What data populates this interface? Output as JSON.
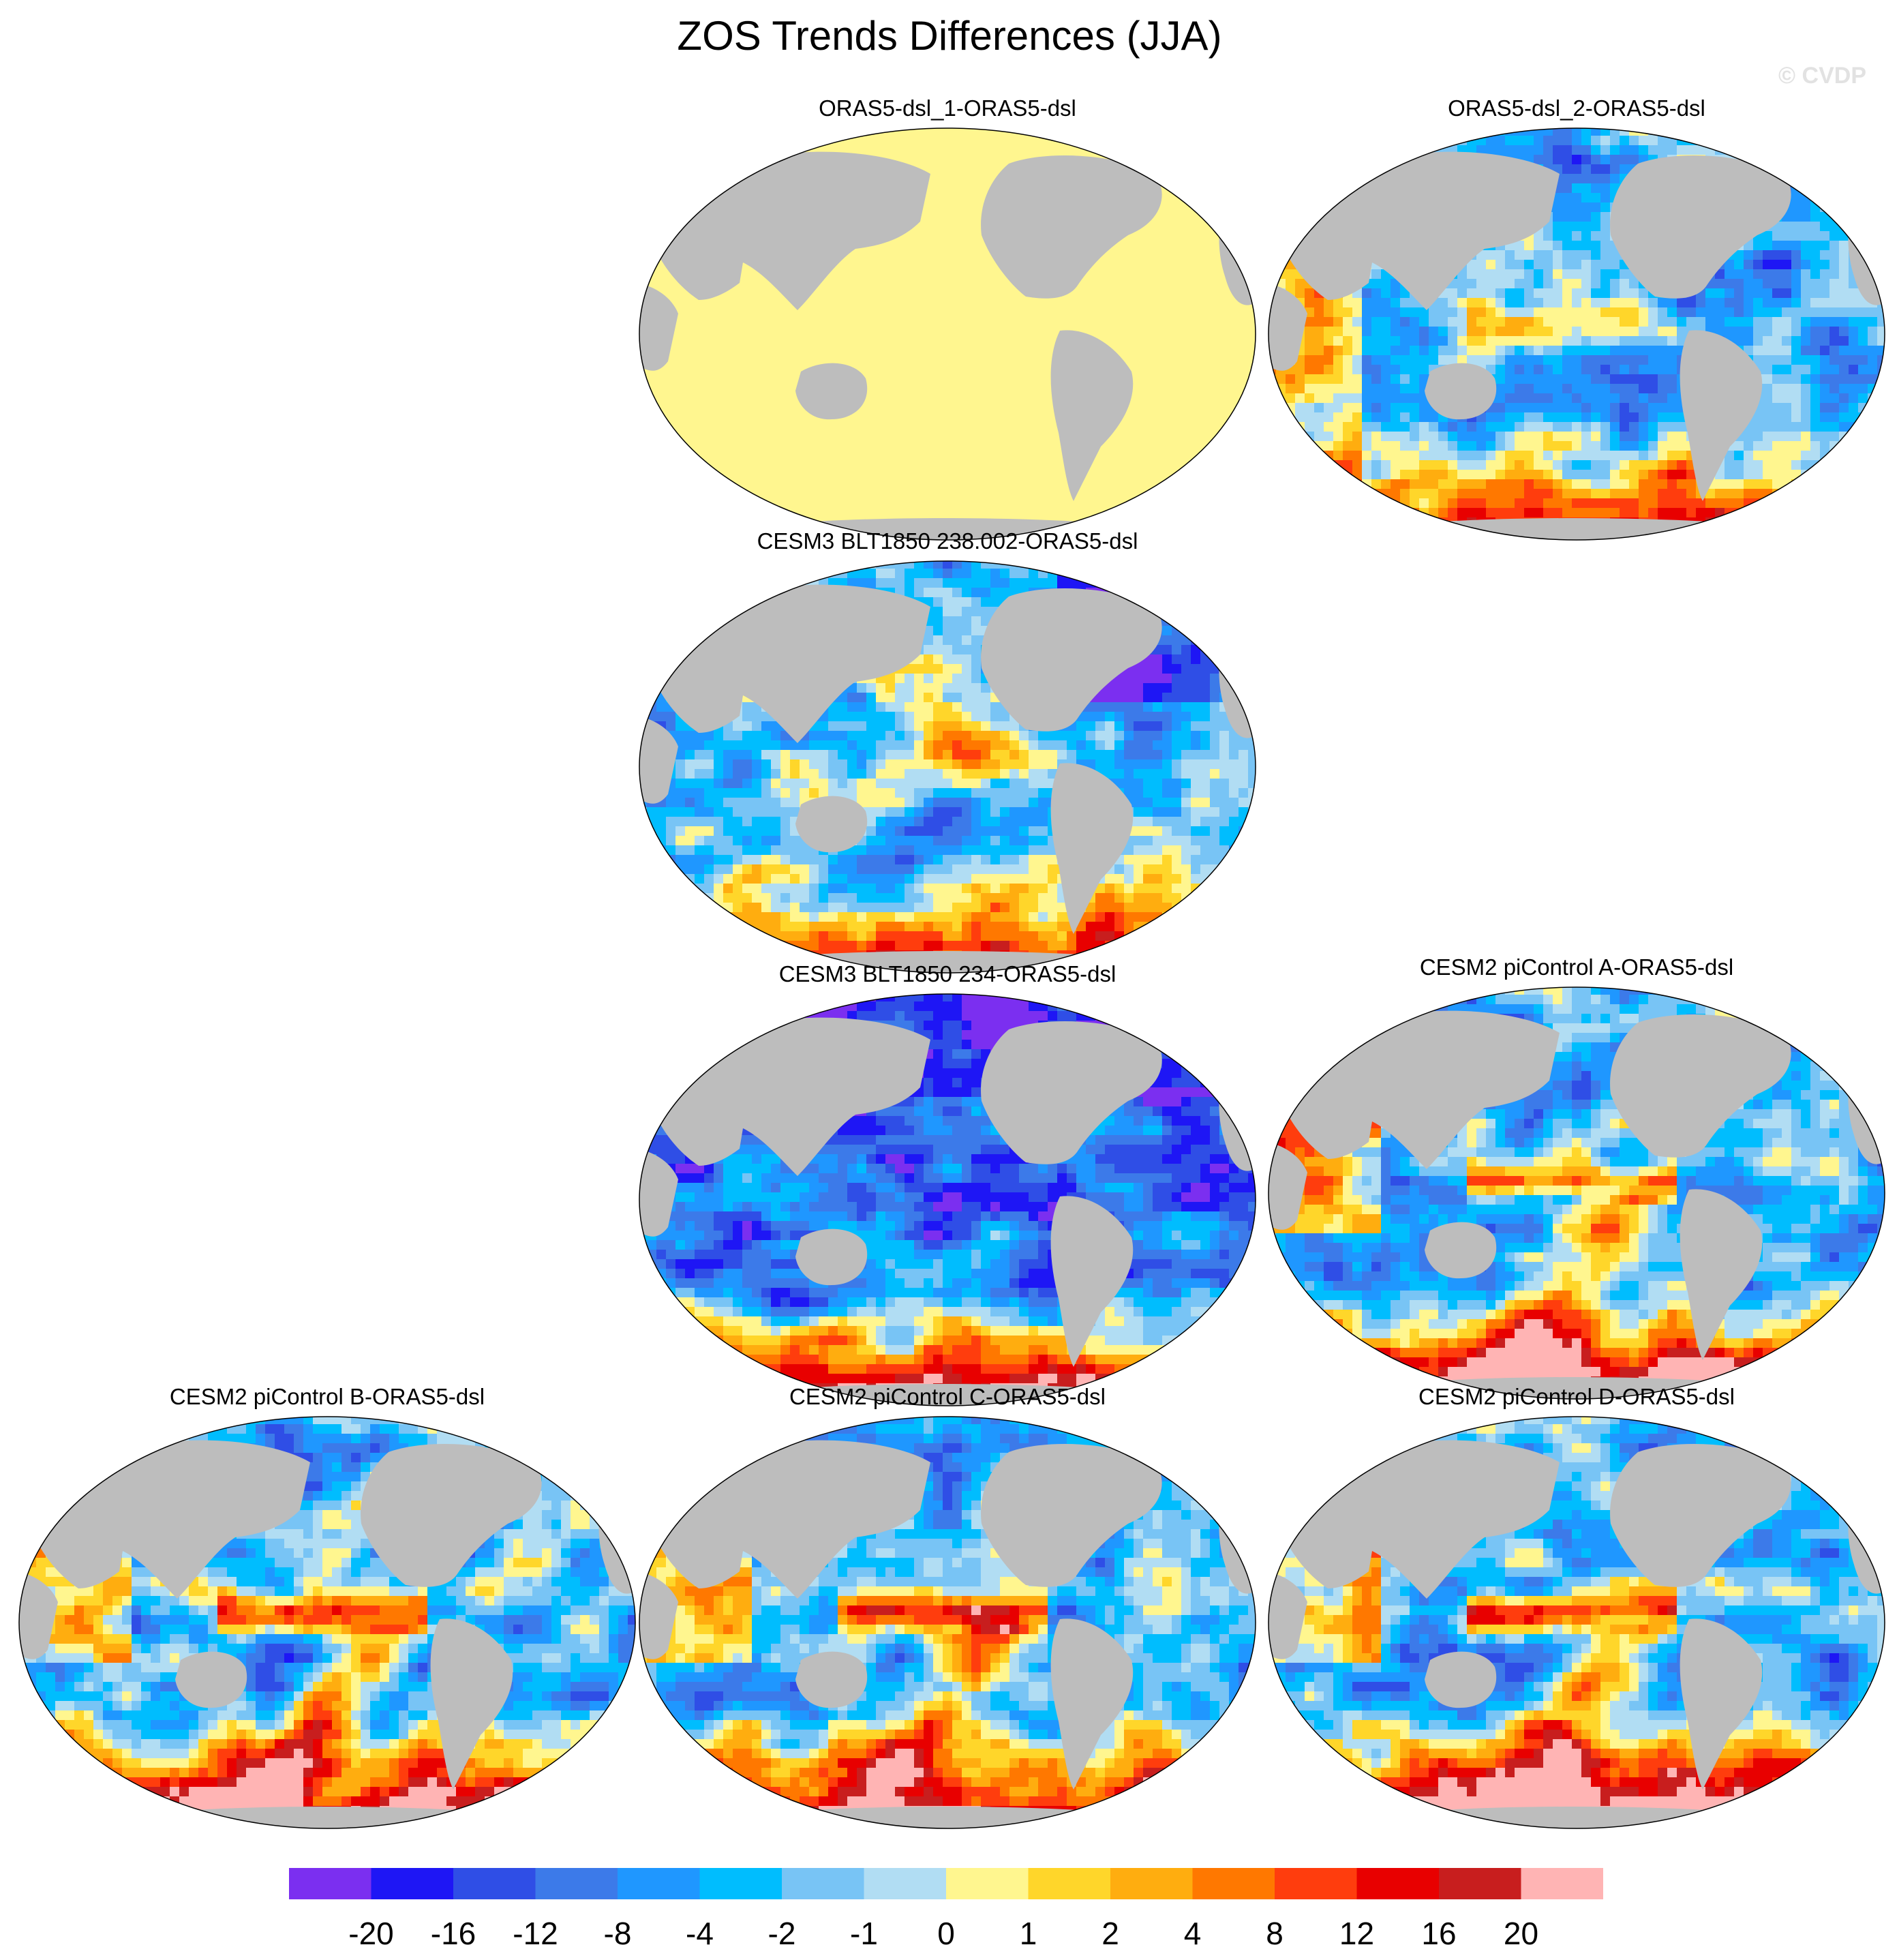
{
  "title": "ZOS Trends Differences (JJA)",
  "watermark": "© CVDP",
  "panels": [
    {
      "id": "p1",
      "title": "ORAS5-dsl_1-ORAS5-dsl",
      "pattern": "uniform"
    },
    {
      "id": "p2",
      "title": "ORAS5-dsl_2-ORAS5-dsl",
      "pattern": "oras_perturb"
    },
    {
      "id": "p3",
      "title": "CESM3 BLT1850 238.002-ORAS5-dsl",
      "pattern": "cesm3_238"
    },
    {
      "id": "p4",
      "title": "CESM3 BLT1850 234-ORAS5-dsl",
      "pattern": "cesm3_234"
    },
    {
      "id": "p5",
      "title": "CESM2 piControl A-ORAS5-dsl",
      "pattern": "cesm2"
    },
    {
      "id": "p6",
      "title": "CESM2 piControl B-ORAS5-dsl",
      "pattern": "cesm2"
    },
    {
      "id": "p7",
      "title": "CESM2 piControl C-ORAS5-dsl",
      "pattern": "cesm2"
    },
    {
      "id": "p8",
      "title": "CESM2 piControl D-ORAS5-dsl",
      "pattern": "cesm2"
    }
  ],
  "colorbar": {
    "labels": [
      "-20",
      "-16",
      "-12",
      "-8",
      "-4",
      "-2",
      "-1",
      "0",
      "1",
      "2",
      "4",
      "8",
      "12",
      "16",
      "20"
    ],
    "colors": [
      "#7b2ff0",
      "#1e16f5",
      "#2f4ee6",
      "#3c7ae9",
      "#1f97ff",
      "#00bdfe",
      "#78c4f5",
      "#b1ddf3",
      "#fff68f",
      "#ffd62a",
      "#ffad0f",
      "#ff7800",
      "#ff3d0d",
      "#e80000",
      "#c81e1e",
      "#ffb4b4"
    ]
  },
  "colors": {
    "land": "#bdbdbd",
    "missing": "#ffffff",
    "outline": "#000000"
  }
}
